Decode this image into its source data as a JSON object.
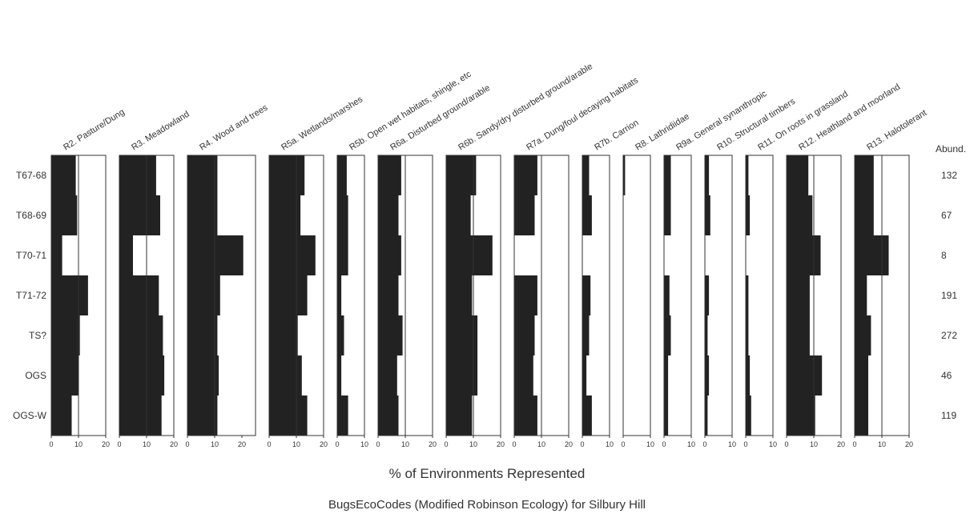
{
  "chart_data": {
    "type": "bar",
    "orientation": "horizontal",
    "layout": "stratigraphic panels",
    "title": "BugsEcoCodes (Modified Robinson Ecology) for Silbury Hill",
    "xlabel": "% of Environments Represented",
    "abundance_header": "Abund.",
    "categories": [
      "T67-68",
      "T68-69",
      "T70-71",
      "T71-72",
      "TS?",
      "OGS",
      "OGS-W"
    ],
    "abundance": [
      "132",
      "67",
      "8",
      "191",
      "272",
      "46",
      "119"
    ],
    "series": [
      {
        "name": "R2. Pasture/Dung",
        "xlim": [
          0,
          20
        ],
        "ticks": [
          "0",
          "10",
          "20"
        ],
        "values": [
          9,
          9.5,
          4,
          13.5,
          10.5,
          10,
          7.5
        ]
      },
      {
        "name": "R3. Meadowland",
        "xlim": [
          0,
          20
        ],
        "ticks": [
          "0",
          "10",
          "20"
        ],
        "values": [
          13.5,
          15,
          5,
          14.5,
          16,
          16.5,
          15.5
        ]
      },
      {
        "name": "R4. Wood and trees",
        "xlim": [
          0,
          25
        ],
        "ticks": [
          "0",
          "10",
          "20"
        ],
        "values": [
          11,
          11,
          20.5,
          12,
          11,
          11.5,
          11
        ]
      },
      {
        "name": "R5a. Wetlands/marshes",
        "xlim": [
          0,
          20
        ],
        "ticks": [
          "0",
          "10",
          "20"
        ],
        "values": [
          13,
          11.5,
          17,
          14,
          10.5,
          12,
          14
        ]
      },
      {
        "name": "R5b. Open wet habitats, shingle, etc",
        "xlim": [
          0,
          10
        ],
        "ticks": [
          "0",
          "10"
        ],
        "values": [
          3.5,
          4,
          4,
          1.5,
          2.5,
          1.5,
          4
        ]
      },
      {
        "name": "R6a. Disturbed ground/arable",
        "xlim": [
          0,
          20
        ],
        "ticks": [
          "0",
          "10",
          "20"
        ],
        "values": [
          8.5,
          7.5,
          8.5,
          7.5,
          9,
          7,
          7.5
        ]
      },
      {
        "name": "R6b. Sandy/dry disturbed ground/arable",
        "xlim": [
          0,
          20
        ],
        "ticks": [
          "0",
          "10",
          "20"
        ],
        "values": [
          11,
          9,
          17,
          9.5,
          11.5,
          11.5,
          9.5
        ]
      },
      {
        "name": "R7a. Dung/foul decaying habitats",
        "xlim": [
          0,
          20
        ],
        "ticks": [
          "0",
          "10",
          "20"
        ],
        "values": [
          8.5,
          7.5,
          0,
          8.5,
          7.5,
          7,
          8.5
        ]
      },
      {
        "name": "R7b. Carrion",
        "xlim": [
          0,
          10
        ],
        "ticks": [
          "0",
          "10"
        ],
        "values": [
          2.5,
          3.5,
          0,
          3,
          2.5,
          1.5,
          3.5
        ]
      },
      {
        "name": "R8. Lathridiidae",
        "xlim": [
          0,
          10
        ],
        "ticks": [
          "0",
          "10"
        ],
        "values": [
          0.7,
          0,
          0,
          0,
          0,
          0,
          0
        ]
      },
      {
        "name": "R9a. General synanthropic",
        "xlim": [
          0,
          10
        ],
        "ticks": [
          "0",
          "10"
        ],
        "values": [
          2.5,
          2.5,
          0,
          2,
          2.5,
          1.5,
          1.5
        ]
      },
      {
        "name": "R10. Structural timbers",
        "xlim": [
          0,
          10
        ],
        "ticks": [
          "0",
          "10"
        ],
        "values": [
          1.5,
          2,
          0,
          1.5,
          1,
          1.5,
          1
        ]
      },
      {
        "name": "R11. On roots in grassland",
        "xlim": [
          0,
          10
        ],
        "ticks": [
          "0",
          "10"
        ],
        "values": [
          1,
          1.5,
          0,
          1,
          1,
          1.5,
          2
        ]
      },
      {
        "name": "R12. Heathland and moorland",
        "xlim": [
          0,
          20
        ],
        "ticks": [
          "0",
          "10",
          "20"
        ],
        "values": [
          8,
          9.5,
          12.5,
          8.5,
          8.5,
          13,
          10.5
        ]
      },
      {
        "name": "R13. Halotolerant",
        "xlim": [
          0,
          20
        ],
        "ticks": [
          "0",
          "10",
          "20"
        ],
        "values": [
          7,
          7,
          12.5,
          4.5,
          6,
          5,
          5
        ]
      }
    ],
    "bar_color": "#222222",
    "grid": false
  }
}
